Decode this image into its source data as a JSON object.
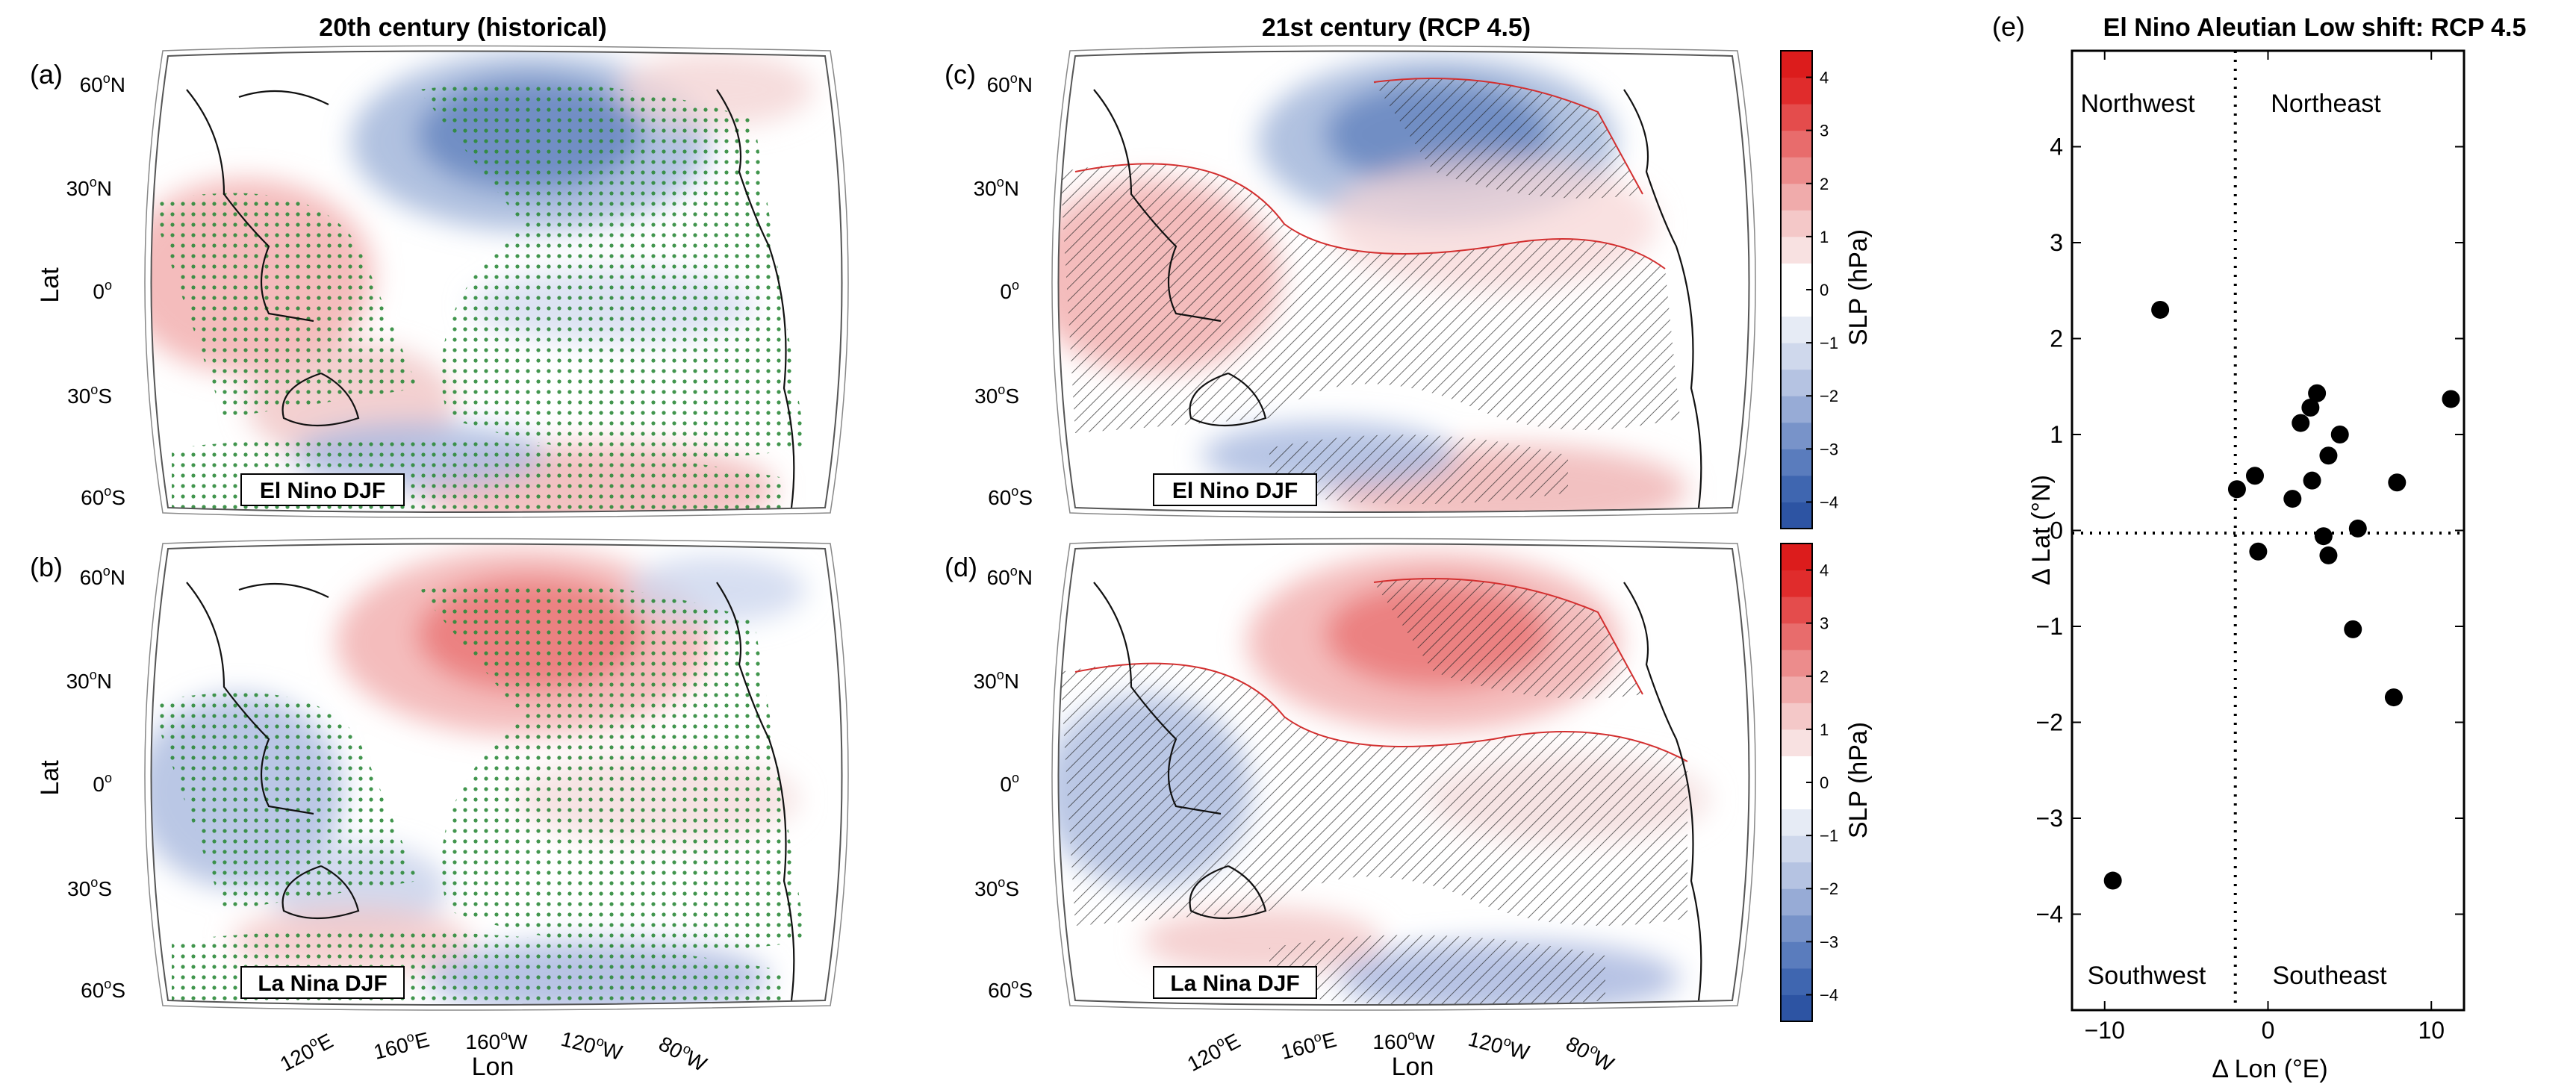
{
  "titles": {
    "historical": "20th century (historical)",
    "future": "21st century (RCP 4.5)"
  },
  "panel_letters": [
    "(a)",
    "(b)",
    "(c)",
    "(d)",
    "(e)"
  ],
  "map_labels": {
    "lat_ticks_top": [
      "60",
      "N",
      "30",
      "N",
      "0",
      "30",
      "S",
      "60",
      "S"
    ],
    "lat_axis": "Lat",
    "lon_axis": "Lon",
    "lon_ticks": [
      "120",
      "E",
      "160",
      "E",
      "160",
      "W",
      "120",
      "W",
      "80",
      "W"
    ],
    "degree": "o",
    "el_nino": "El Nino DJF",
    "la_nina": "La Nina DJF"
  },
  "colorbar": {
    "label": "SLP (hPa)",
    "ticks": [
      "4",
      "3",
      "2",
      "1",
      "0",
      "−1",
      "−2",
      "−3",
      "−4"
    ],
    "colors": [
      "#2d54a3",
      "#3f66b0",
      "#5a7cbd",
      "#7893c9",
      "#97abd6",
      "#b5c3e2",
      "#cfd8ec",
      "#e6ebf5",
      "#ffffff",
      "#ffffff",
      "#f8e1e1",
      "#f4c8c8",
      "#f0abab",
      "#ec8c8c",
      "#e86c6c",
      "#e44c4c",
      "#e02c2c",
      "#dc1c1c"
    ]
  },
  "chart_data": {
    "type": "scatter",
    "title": "El Nino Aleutian Low shift: RCP 4.5",
    "xlabel": "Δ Lon (°E)",
    "ylabel": "Δ Lat (°N)",
    "xlim": [
      -12,
      12
    ],
    "ylim": [
      -5,
      5
    ],
    "xticks": [
      -10,
      0,
      10
    ],
    "yticks": [
      -4,
      -3,
      -2,
      -1,
      0,
      1,
      2,
      3,
      4
    ],
    "quadrants": [
      "Northwest",
      "Northeast",
      "Southwest",
      "Southeast"
    ],
    "points": [
      {
        "x": -6.6,
        "y": 2.3
      },
      {
        "x": -9.5,
        "y": -3.65
      },
      {
        "x": -1.9,
        "y": 0.43
      },
      {
        "x": -0.8,
        "y": 0.57
      },
      {
        "x": -0.6,
        "y": -0.22
      },
      {
        "x": 1.5,
        "y": 0.33
      },
      {
        "x": 2.0,
        "y": 1.12
      },
      {
        "x": 2.6,
        "y": 1.28
      },
      {
        "x": 3.0,
        "y": 1.43
      },
      {
        "x": 2.7,
        "y": 0.52
      },
      {
        "x": 3.7,
        "y": 0.78
      },
      {
        "x": 4.4,
        "y": 1.0
      },
      {
        "x": 3.4,
        "y": -0.06
      },
      {
        "x": 3.7,
        "y": -0.26
      },
      {
        "x": 5.5,
        "y": 0.02
      },
      {
        "x": 7.9,
        "y": 0.5
      },
      {
        "x": 11.2,
        "y": 1.37
      },
      {
        "x": 5.2,
        "y": -1.03
      },
      {
        "x": 7.7,
        "y": -1.74
      }
    ]
  }
}
